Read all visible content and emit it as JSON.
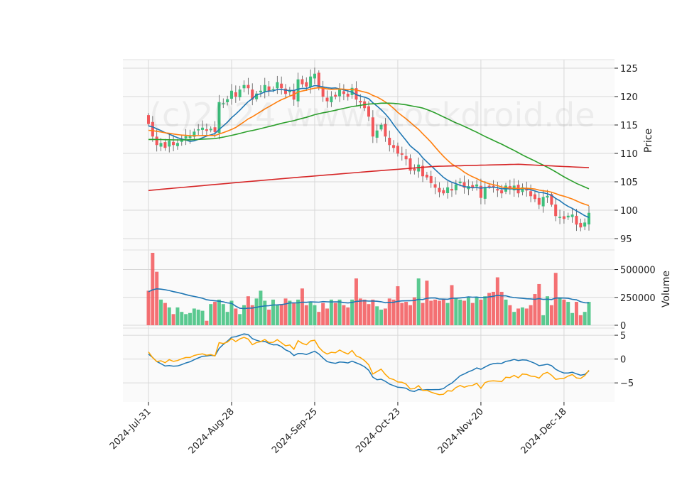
{
  "watermark": "(c)2024 www.stockdroid.de",
  "chart_data": {
    "type": "candlestick",
    "title": "",
    "x_ticks": [
      "2024-Jul-31",
      "2024-Aug-28",
      "2024-Sep-25",
      "2024-Oct-23",
      "2024-Nov-20",
      "2024-Dec-18"
    ],
    "price_panel": {
      "ylabel": "Price",
      "ylim": [
        93,
        126.5
      ],
      "yticks": [
        95,
        100,
        105,
        110,
        115,
        120,
        125
      ],
      "close": [
        115.2,
        113.0,
        111.5,
        111.8,
        111.0,
        112.2,
        111.5,
        111.8,
        112.5,
        113.0,
        113.0,
        113.8,
        114.2,
        114.5,
        114.0,
        114.3,
        113.8,
        119.0,
        118.8,
        119.5,
        121.0,
        120.0,
        121.2,
        122.0,
        121.5,
        119.5,
        120.5,
        121.0,
        122.0,
        121.0,
        121.3,
        122.5,
        121.5,
        120.5,
        121.0,
        119.5,
        123.0,
        122.2,
        121.8,
        123.5,
        124.0,
        121.5,
        120.0,
        119.2,
        120.0,
        120.0,
        121.2,
        120.5,
        120.0,
        121.5,
        119.5,
        119.0,
        118.0,
        116.5,
        113.0,
        114.0,
        115.0,
        113.0,
        111.5,
        111.0,
        110.0,
        109.8,
        109.0,
        107.0,
        107.0,
        108.0,
        106.0,
        105.8,
        104.8,
        104.0,
        103.2,
        103.0,
        104.0,
        103.5,
        104.5,
        105.0,
        104.0,
        104.2,
        104.0,
        104.5,
        102.2,
        104.0,
        104.2,
        104.0,
        103.5,
        103.0,
        104.3,
        103.8,
        104.3,
        103.0,
        104.0,
        103.5,
        102.5,
        102.0,
        101.0,
        102.3,
        102.5,
        101.0,
        99.0,
        98.8,
        98.5,
        99.0,
        99.2,
        97.5,
        97.0,
        97.8,
        99.5
      ],
      "volume": [
        310000,
        650000,
        480000,
        230000,
        200000,
        160000,
        100000,
        160000,
        120000,
        100000,
        110000,
        150000,
        140000,
        130000,
        40000,
        190000,
        210000,
        230000,
        190000,
        120000,
        220000,
        150000,
        100000,
        180000,
        260000,
        180000,
        240000,
        310000,
        220000,
        140000,
        230000,
        180000,
        190000,
        240000,
        220000,
        200000,
        230000,
        330000,
        180000,
        210000,
        180000,
        120000,
        200000,
        150000,
        230000,
        200000,
        230000,
        180000,
        160000,
        230000,
        420000,
        240000,
        230000,
        190000,
        230000,
        170000,
        140000,
        150000,
        240000,
        230000,
        350000,
        200000,
        210000,
        180000,
        250000,
        420000,
        200000,
        400000,
        220000,
        230000,
        220000,
        230000,
        200000,
        360000,
        240000,
        230000,
        220000,
        250000,
        200000,
        250000,
        230000,
        260000,
        290000,
        300000,
        430000,
        300000,
        230000,
        180000,
        120000,
        150000,
        160000,
        150000,
        180000,
        280000,
        370000,
        90000,
        260000,
        180000,
        470000,
        250000,
        230000,
        210000,
        110000,
        210000,
        90000,
        120000,
        210000
      ],
      "ma_windows": [
        10,
        20,
        50,
        200
      ],
      "ma_colors": [
        "#1f77b4",
        "#ff7f0e",
        "#2ca02c",
        "#d62728"
      ],
      "ma_200_start": 103.4,
      "up_color": "#3dbf7c",
      "down_color": "#f2575a"
    },
    "volume_panel": {
      "ylabel": "Volume",
      "ylim": [
        0,
        650000
      ],
      "yticks": [
        0,
        250000,
        500000
      ],
      "ytick_labels": [
        "0",
        "250000",
        "500000"
      ],
      "avg_line_color": "#1f77b4"
    },
    "oscillator_panel": {
      "ylim": [
        -9,
        6.5
      ],
      "yticks": [
        -5,
        0,
        5
      ],
      "ytick_labels": [
        "−5",
        "0",
        "5"
      ],
      "line1_color": "#1f77b4",
      "line2_color": "#ffa500"
    }
  }
}
